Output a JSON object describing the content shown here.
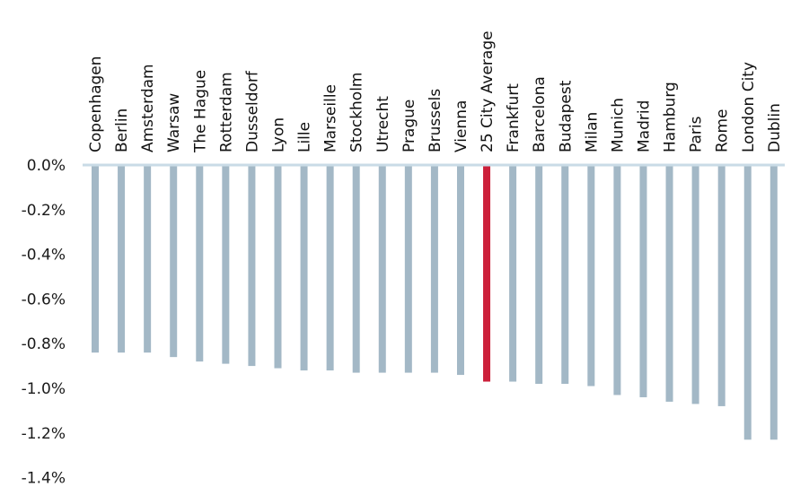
{
  "chart_data": {
    "type": "bar",
    "title": "",
    "xlabel": "",
    "ylabel": "",
    "ylim": [
      -1.4,
      0.0
    ],
    "yticks": [
      0.0,
      -0.2,
      -0.4,
      -0.6,
      -0.8,
      -1.0,
      -1.2,
      -1.4
    ],
    "ytick_labels": [
      "0.0%",
      "-0.2%",
      "-0.4%",
      "-0.6%",
      "-0.8%",
      "-1.0%",
      "-1.2%",
      "-1.4%"
    ],
    "grid": false,
    "legend": "none",
    "categories": [
      "Copenhagen",
      "Berlin",
      "Amsterdam",
      "Warsaw",
      "The Hague",
      "Rotterdam",
      "Dusseldorf",
      "Lyon",
      "Lille",
      "Marseille",
      "Stockholm",
      "Utrecht",
      "Prague",
      "Brussels",
      "Vienna",
      "25 City Average",
      "Frankfurt",
      "Barcelona",
      "Budapest",
      "Milan",
      "Munich",
      "Madrid",
      "Hamburg",
      "Paris",
      "Rome",
      "London City",
      "Dublin"
    ],
    "values": [
      -0.84,
      -0.84,
      -0.84,
      -0.86,
      -0.88,
      -0.89,
      -0.9,
      -0.91,
      -0.92,
      -0.92,
      -0.93,
      -0.93,
      -0.93,
      -0.93,
      -0.94,
      -0.97,
      -0.97,
      -0.98,
      -0.98,
      -0.99,
      -1.03,
      -1.04,
      -1.06,
      -1.07,
      -1.08,
      -1.23,
      -1.23
    ],
    "highlight_category": "25 City Average",
    "colors": {
      "bar": "#a3b8c6",
      "highlight": "#cc1f3a",
      "axis": "#c9dbe6"
    }
  }
}
